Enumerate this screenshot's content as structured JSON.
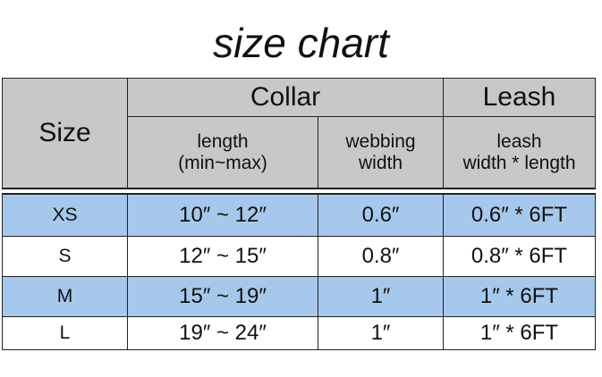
{
  "title": "size chart",
  "headers": {
    "size": "Size",
    "collar": "Collar",
    "leash": "Leash",
    "collar_length": [
      "length",
      "(min~max)"
    ],
    "webbing_width": [
      "webbing",
      "width"
    ],
    "leash_dims": [
      "leash",
      "width * length"
    ]
  },
  "rows": [
    {
      "size": "XS",
      "length": "10″ ~ 12″",
      "webbing": "0.6″",
      "leash": "0.6″ * 6FT"
    },
    {
      "size": "S",
      "length": "12″ ~ 15″",
      "webbing": "0.8″",
      "leash": "0.8″ * 6FT"
    },
    {
      "size": "M",
      "length": "15″ ~ 19″",
      "webbing": "1″",
      "leash": "1″ * 6FT"
    },
    {
      "size": "L",
      "length": "19″ ~ 24″",
      "webbing": "1″",
      "leash": "1″ * 6FT"
    }
  ],
  "colors": {
    "header": "#c8c8c8",
    "highlight_row": "#a6c8ec",
    "plain_row": "#ffffff"
  }
}
